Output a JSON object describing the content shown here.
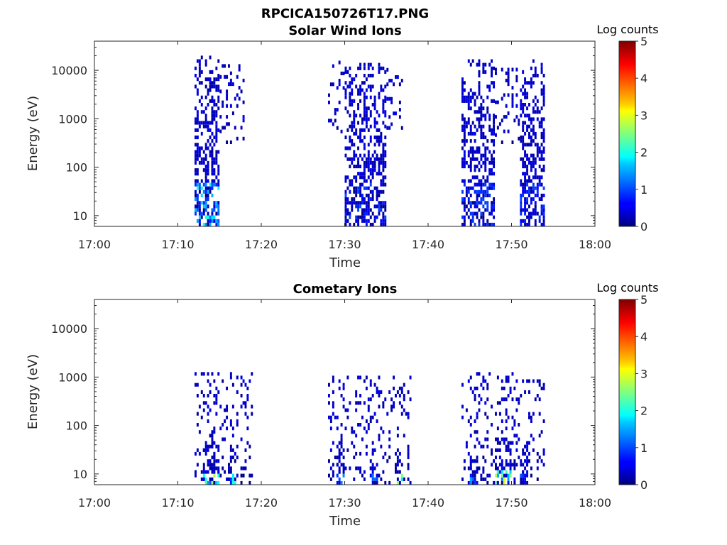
{
  "figure_title": "RPCICA150726T17.PNG",
  "chart_data": [
    {
      "type": "heatmap",
      "title": "Solar Wind Ions",
      "xlabel": "Time",
      "ylabel": "Energy (eV)",
      "x_ticks": [
        "17:00",
        "17:10",
        "17:20",
        "17:30",
        "17:40",
        "17:50",
        "18:00"
      ],
      "xlim": [
        "17:00",
        "18:00"
      ],
      "y_scale": "log",
      "y_ticks": [
        "10",
        "100",
        "1000",
        "10000"
      ],
      "ylim": [
        6,
        40000
      ],
      "colorbar": {
        "label": "Log counts",
        "range": [
          0,
          5
        ],
        "ticks": [
          "0",
          "1",
          "2",
          "3",
          "4",
          "5"
        ],
        "colormap": "jet"
      },
      "bursts": [
        {
          "t_start": "17:12",
          "t_end": "17:15",
          "e_min": 6,
          "e_max": 20000,
          "peak_log_counts": 2,
          "dense": true
        },
        {
          "t_start": "17:15",
          "t_end": "17:18",
          "e_min": 300,
          "e_max": 15000,
          "peak_log_counts": 0.5,
          "dense": false
        },
        {
          "t_start": "17:28",
          "t_end": "17:30",
          "e_min": 500,
          "e_max": 15000,
          "peak_log_counts": 0.5,
          "dense": false
        },
        {
          "t_start": "17:30",
          "t_end": "17:35",
          "e_min": 6,
          "e_max": 12000,
          "peak_log_counts": 1,
          "dense": true
        },
        {
          "t_start": "17:35",
          "t_end": "17:37",
          "e_min": 500,
          "e_max": 10000,
          "peak_log_counts": 0.5,
          "dense": false
        },
        {
          "t_start": "17:44",
          "t_end": "17:48",
          "e_min": 6,
          "e_max": 15000,
          "peak_log_counts": 1,
          "dense": true
        },
        {
          "t_start": "17:48",
          "t_end": "17:51",
          "e_min": 300,
          "e_max": 12000,
          "peak_log_counts": 0.5,
          "dense": false
        },
        {
          "t_start": "17:51",
          "t_end": "17:54",
          "e_min": 6,
          "e_max": 15000,
          "peak_log_counts": 1,
          "dense": true
        }
      ]
    },
    {
      "type": "heatmap",
      "title": "Cometary Ions",
      "xlabel": "Time",
      "ylabel": "Energy (eV)",
      "x_ticks": [
        "17:00",
        "17:10",
        "17:20",
        "17:30",
        "17:40",
        "17:50",
        "18:00"
      ],
      "xlim": [
        "17:00",
        "18:00"
      ],
      "y_scale": "log",
      "y_ticks": [
        "10",
        "100",
        "1000",
        "10000"
      ],
      "ylim": [
        6,
        40000
      ],
      "colorbar": {
        "label": "Log counts",
        "range": [
          0,
          5
        ],
        "ticks": [
          "0",
          "1",
          "2",
          "3",
          "4",
          "5"
        ],
        "colormap": "jet"
      },
      "bursts": [
        {
          "t_start": "17:12",
          "t_end": "17:19",
          "e_min": 6,
          "e_max": 1200,
          "peak_log_counts": 0.5,
          "dense": false
        },
        {
          "t_start": "17:13",
          "t_end": "17:15",
          "e_min": 6,
          "e_max": 40,
          "peak_log_counts": 2.8,
          "dense": true
        },
        {
          "t_start": "17:16",
          "t_end": "17:17",
          "e_min": 6,
          "e_max": 30,
          "peak_log_counts": 2.6,
          "dense": true
        },
        {
          "t_start": "17:28",
          "t_end": "17:38",
          "e_min": 6,
          "e_max": 1000,
          "peak_log_counts": 0.5,
          "dense": false
        },
        {
          "t_start": "17:29",
          "t_end": "17:30",
          "e_min": 6,
          "e_max": 30,
          "peak_log_counts": 1.5,
          "dense": true
        },
        {
          "t_start": "17:33",
          "t_end": "17:34",
          "e_min": 6,
          "e_max": 30,
          "peak_log_counts": 1.4,
          "dense": true
        },
        {
          "t_start": "17:36",
          "t_end": "17:37",
          "e_min": 6,
          "e_max": 40,
          "peak_log_counts": 3,
          "dense": true
        },
        {
          "t_start": "17:44",
          "t_end": "17:54",
          "e_min": 6,
          "e_max": 1200,
          "peak_log_counts": 0.5,
          "dense": false
        },
        {
          "t_start": "17:45",
          "t_end": "17:46",
          "e_min": 6,
          "e_max": 30,
          "peak_log_counts": 1.5,
          "dense": true
        },
        {
          "t_start": "17:48",
          "t_end": "17:50",
          "e_min": 6,
          "e_max": 50,
          "peak_log_counts": 3,
          "dense": true
        },
        {
          "t_start": "17:51",
          "t_end": "17:52",
          "e_min": 6,
          "e_max": 30,
          "peak_log_counts": 1.5,
          "dense": true
        }
      ]
    }
  ]
}
